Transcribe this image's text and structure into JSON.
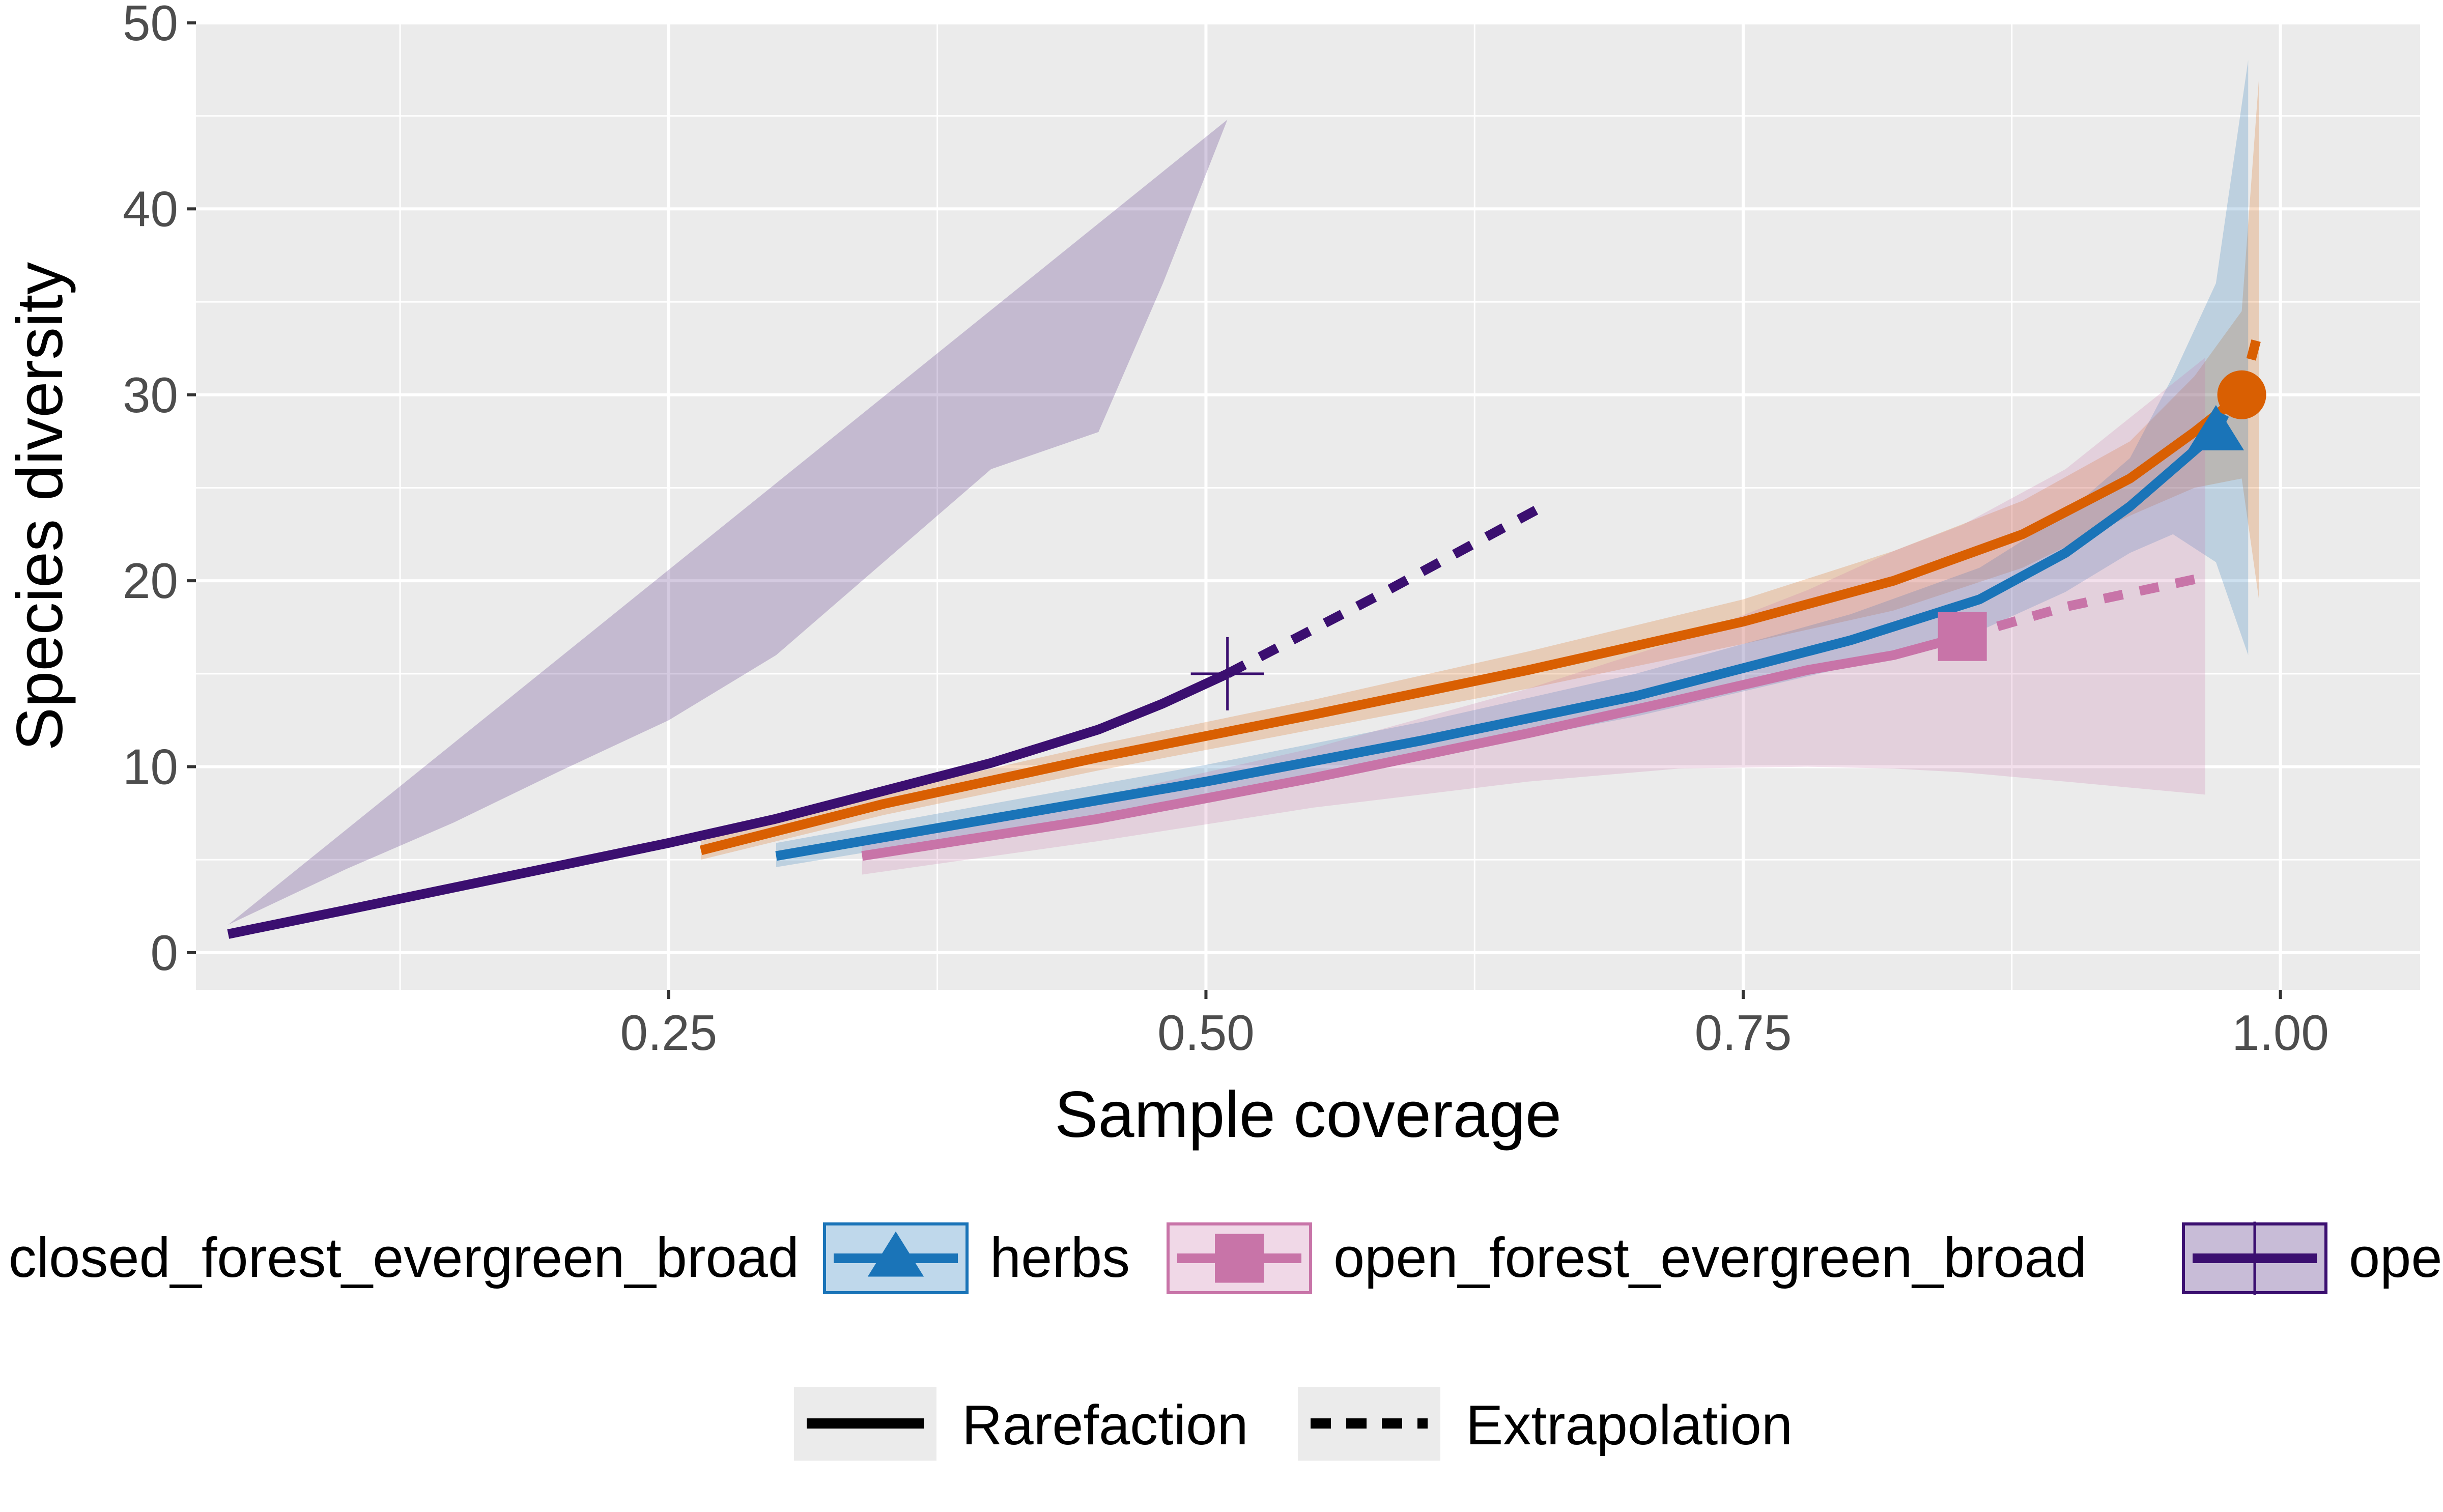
{
  "chart_data": {
    "type": "line",
    "xlabel": "Sample coverage",
    "ylabel": "Species diversity",
    "xlim": [
      0.03,
      1.065
    ],
    "ylim": [
      -2,
      50
    ],
    "x_ticks": [
      0.25,
      0.5,
      0.75,
      1.0
    ],
    "x_tick_labels": [
      "0.25",
      "0.50",
      "0.75",
      "1.00"
    ],
    "y_ticks": [
      0,
      10,
      20,
      30,
      40,
      50
    ],
    "y_tick_labels": [
      "0",
      "10",
      "20",
      "30",
      "40",
      "50"
    ],
    "grid": true,
    "legend_position": "bottom",
    "series": [
      {
        "name": "closed_forest_evergreen_broad",
        "color": "#d95f02",
        "marker": "circle",
        "observed": {
          "x": 0.982,
          "y": 30
        },
        "rarefaction": {
          "x": [
            0.265,
            0.35,
            0.45,
            0.55,
            0.65,
            0.75,
            0.82,
            0.88,
            0.93,
            0.96,
            0.982
          ],
          "y": [
            5.5,
            8.0,
            10.5,
            12.8,
            15.2,
            17.8,
            20.0,
            22.5,
            25.5,
            28.0,
            30.0
          ]
        },
        "extrapolation": {
          "x": [
            0.982,
            0.99
          ],
          "y": [
            30.0,
            33.5
          ]
        },
        "ci_upper": [
          6.0,
          8.6,
          11.2,
          13.6,
          16.2,
          19.0,
          21.6,
          24.3,
          27.5,
          31.0,
          34.5,
          47.0
        ],
        "ci_lower": [
          5.0,
          7.4,
          9.8,
          12.0,
          14.2,
          16.6,
          18.4,
          20.7,
          23.5,
          25.0,
          25.5,
          19.0
        ]
      },
      {
        "name": "herbs",
        "color": "#1a74b8",
        "marker": "triangle",
        "observed": {
          "x": 0.97,
          "y": 28
        },
        "rarefaction": {
          "x": [
            0.3,
            0.4,
            0.5,
            0.6,
            0.7,
            0.8,
            0.86,
            0.9,
            0.93,
            0.95,
            0.97
          ],
          "y": [
            5.2,
            7.2,
            9.2,
            11.4,
            13.8,
            16.8,
            19.0,
            21.5,
            24.0,
            26.0,
            28.0
          ]
        },
        "extrapolation": {
          "x": [
            0.97,
            0.985
          ],
          "y": [
            28.0,
            31.5
          ]
        },
        "ci_upper": [
          5.9,
          8.0,
          10.1,
          12.4,
          15.0,
          18.2,
          20.7,
          23.6,
          26.6,
          31.0,
          36.0,
          48.0
        ],
        "ci_lower": [
          4.6,
          6.5,
          8.3,
          10.5,
          12.7,
          15.4,
          17.3,
          19.4,
          21.5,
          22.5,
          21.0,
          16.0
        ]
      },
      {
        "name": "open_forest_evergreen_broad",
        "color": "#c874a8",
        "marker": "square",
        "observed": {
          "x": 0.852,
          "y": 17
        },
        "rarefaction": {
          "x": [
            0.34,
            0.45,
            0.55,
            0.65,
            0.72,
            0.78,
            0.82,
            0.852
          ],
          "y": [
            5.2,
            7.2,
            9.4,
            11.8,
            13.6,
            15.2,
            16.0,
            17.0
          ]
        },
        "extrapolation": {
          "x": [
            0.852,
            0.9,
            0.965
          ],
          "y": [
            17.0,
            18.6,
            20.2
          ]
        },
        "ci_upper": [
          6.0,
          8.4,
          11.0,
          14.2,
          16.8,
          19.5,
          21.6,
          23.0,
          26.0,
          32.0
        ],
        "ci_lower": [
          4.2,
          6.0,
          7.8,
          9.2,
          9.9,
          10.0,
          9.9,
          9.7,
          9.2,
          8.5
        ]
      },
      {
        "name": "open_forest_evergreen_needle",
        "color": "#3b0f70",
        "marker": "cross",
        "observed": {
          "x": 0.51,
          "y": 15
        },
        "rarefaction": {
          "x": [
            0.045,
            0.1,
            0.15,
            0.2,
            0.25,
            0.3,
            0.35,
            0.4,
            0.45,
            0.48,
            0.51
          ],
          "y": [
            1.0,
            2.3,
            3.5,
            4.7,
            5.9,
            7.2,
            8.7,
            10.2,
            12.0,
            13.4,
            15.0
          ]
        },
        "extrapolation": {
          "x": [
            0.51,
            0.58,
            0.66
          ],
          "y": [
            15.0,
            19.2,
            24.2
          ]
        },
        "ci_upper": [
          1.5,
          4.5,
          7.0,
          9.8,
          12.5,
          16.0,
          21.0,
          26.0,
          28.0,
          36.0,
          44.8
        ],
        "ci_lower": [
          0.3,
          0.4,
          0.6,
          0.9,
          1.2,
          1.5,
          1.6,
          1.8,
          2.2,
          3.0,
          3.3
        ]
      }
    ],
    "legend_groups": [
      {
        "name": "closed_forest_evergreen_broad",
        "visible_label": "closed_forest_evergreen_broad",
        "marker": "circle",
        "color": "#d95f02"
      },
      {
        "name": "herbs",
        "visible_label": "herbs",
        "marker": "triangle",
        "color": "#1a74b8"
      },
      {
        "name": "open_forest_evergreen_broad",
        "visible_label": "open_forest_evergreen_broad",
        "marker": "square",
        "color": "#c874a8"
      },
      {
        "name": "open_forest_evergreen_needle",
        "visible_label": "open_forest_evergreen_needle",
        "marker": "cross",
        "color": "#3b0f70"
      }
    ],
    "method_legend": [
      {
        "label": "Rarefaction",
        "linetype": "solid"
      },
      {
        "label": "Extrapolation",
        "linetype": "dashed"
      }
    ]
  }
}
